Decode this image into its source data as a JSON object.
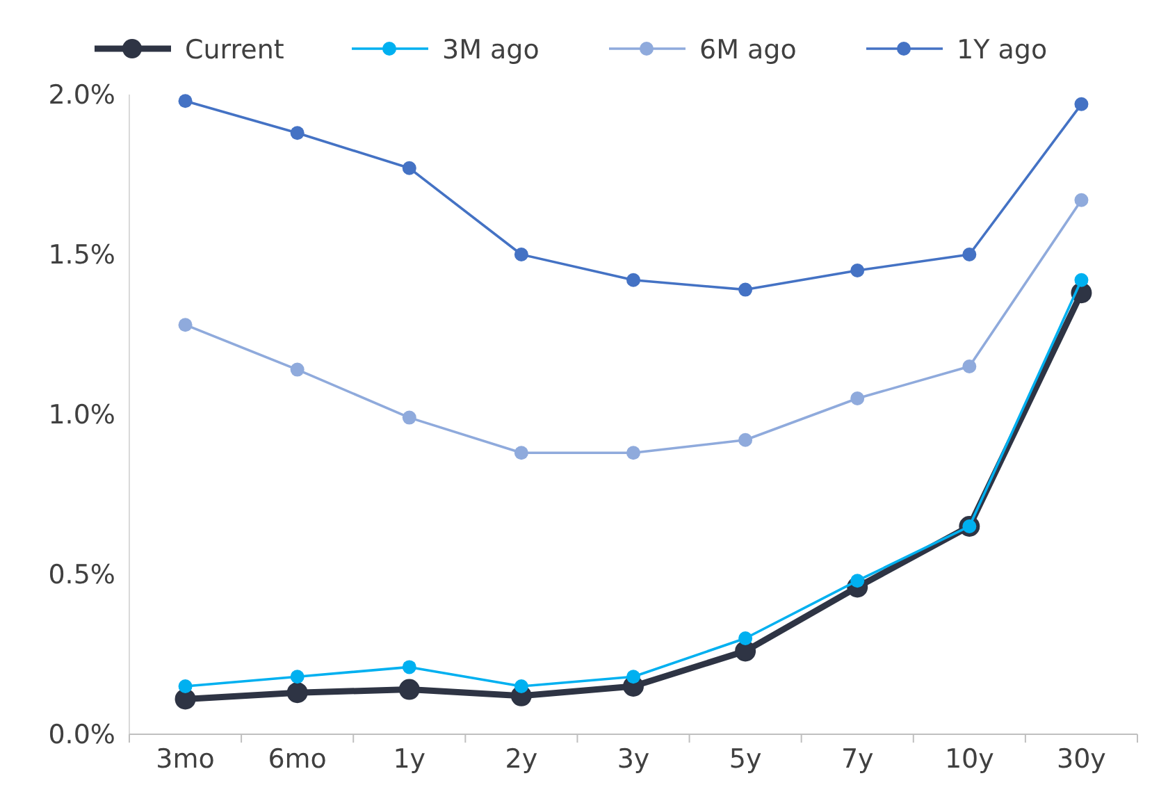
{
  "chart_data": {
    "type": "line",
    "categories": [
      "3mo",
      "6mo",
      "1y",
      "2y",
      "3y",
      "5y",
      "7y",
      "10y",
      "30y"
    ],
    "series": [
      {
        "name": "Current",
        "color": "#2e3444",
        "values": [
          0.11,
          0.13,
          0.14,
          0.12,
          0.15,
          0.26,
          0.46,
          0.65,
          1.38
        ]
      },
      {
        "name": "3M ago",
        "color": "#00b0f0",
        "values": [
          0.15,
          0.18,
          0.21,
          0.15,
          0.18,
          0.3,
          0.48,
          0.65,
          1.42
        ]
      },
      {
        "name": "6M ago",
        "color": "#8faadc",
        "values": [
          1.28,
          1.14,
          0.99,
          0.88,
          0.88,
          0.92,
          1.05,
          1.15,
          1.67
        ]
      },
      {
        "name": "1Y ago",
        "color": "#4472c4",
        "values": [
          1.98,
          1.88,
          1.77,
          1.5,
          1.42,
          1.39,
          1.45,
          1.5,
          1.97
        ]
      }
    ],
    "ylim": [
      0,
      2
    ],
    "yticks": [
      {
        "value": 0,
        "label": "0.0%"
      },
      {
        "value": 0.5,
        "label": "0.5%"
      },
      {
        "value": 1,
        "label": "1.0%"
      },
      {
        "value": 1.5,
        "label": "1.5%"
      },
      {
        "value": 2,
        "label": "2.0%"
      }
    ],
    "grid": false,
    "legend": "top",
    "marker": "circle",
    "line_style": "solid"
  }
}
